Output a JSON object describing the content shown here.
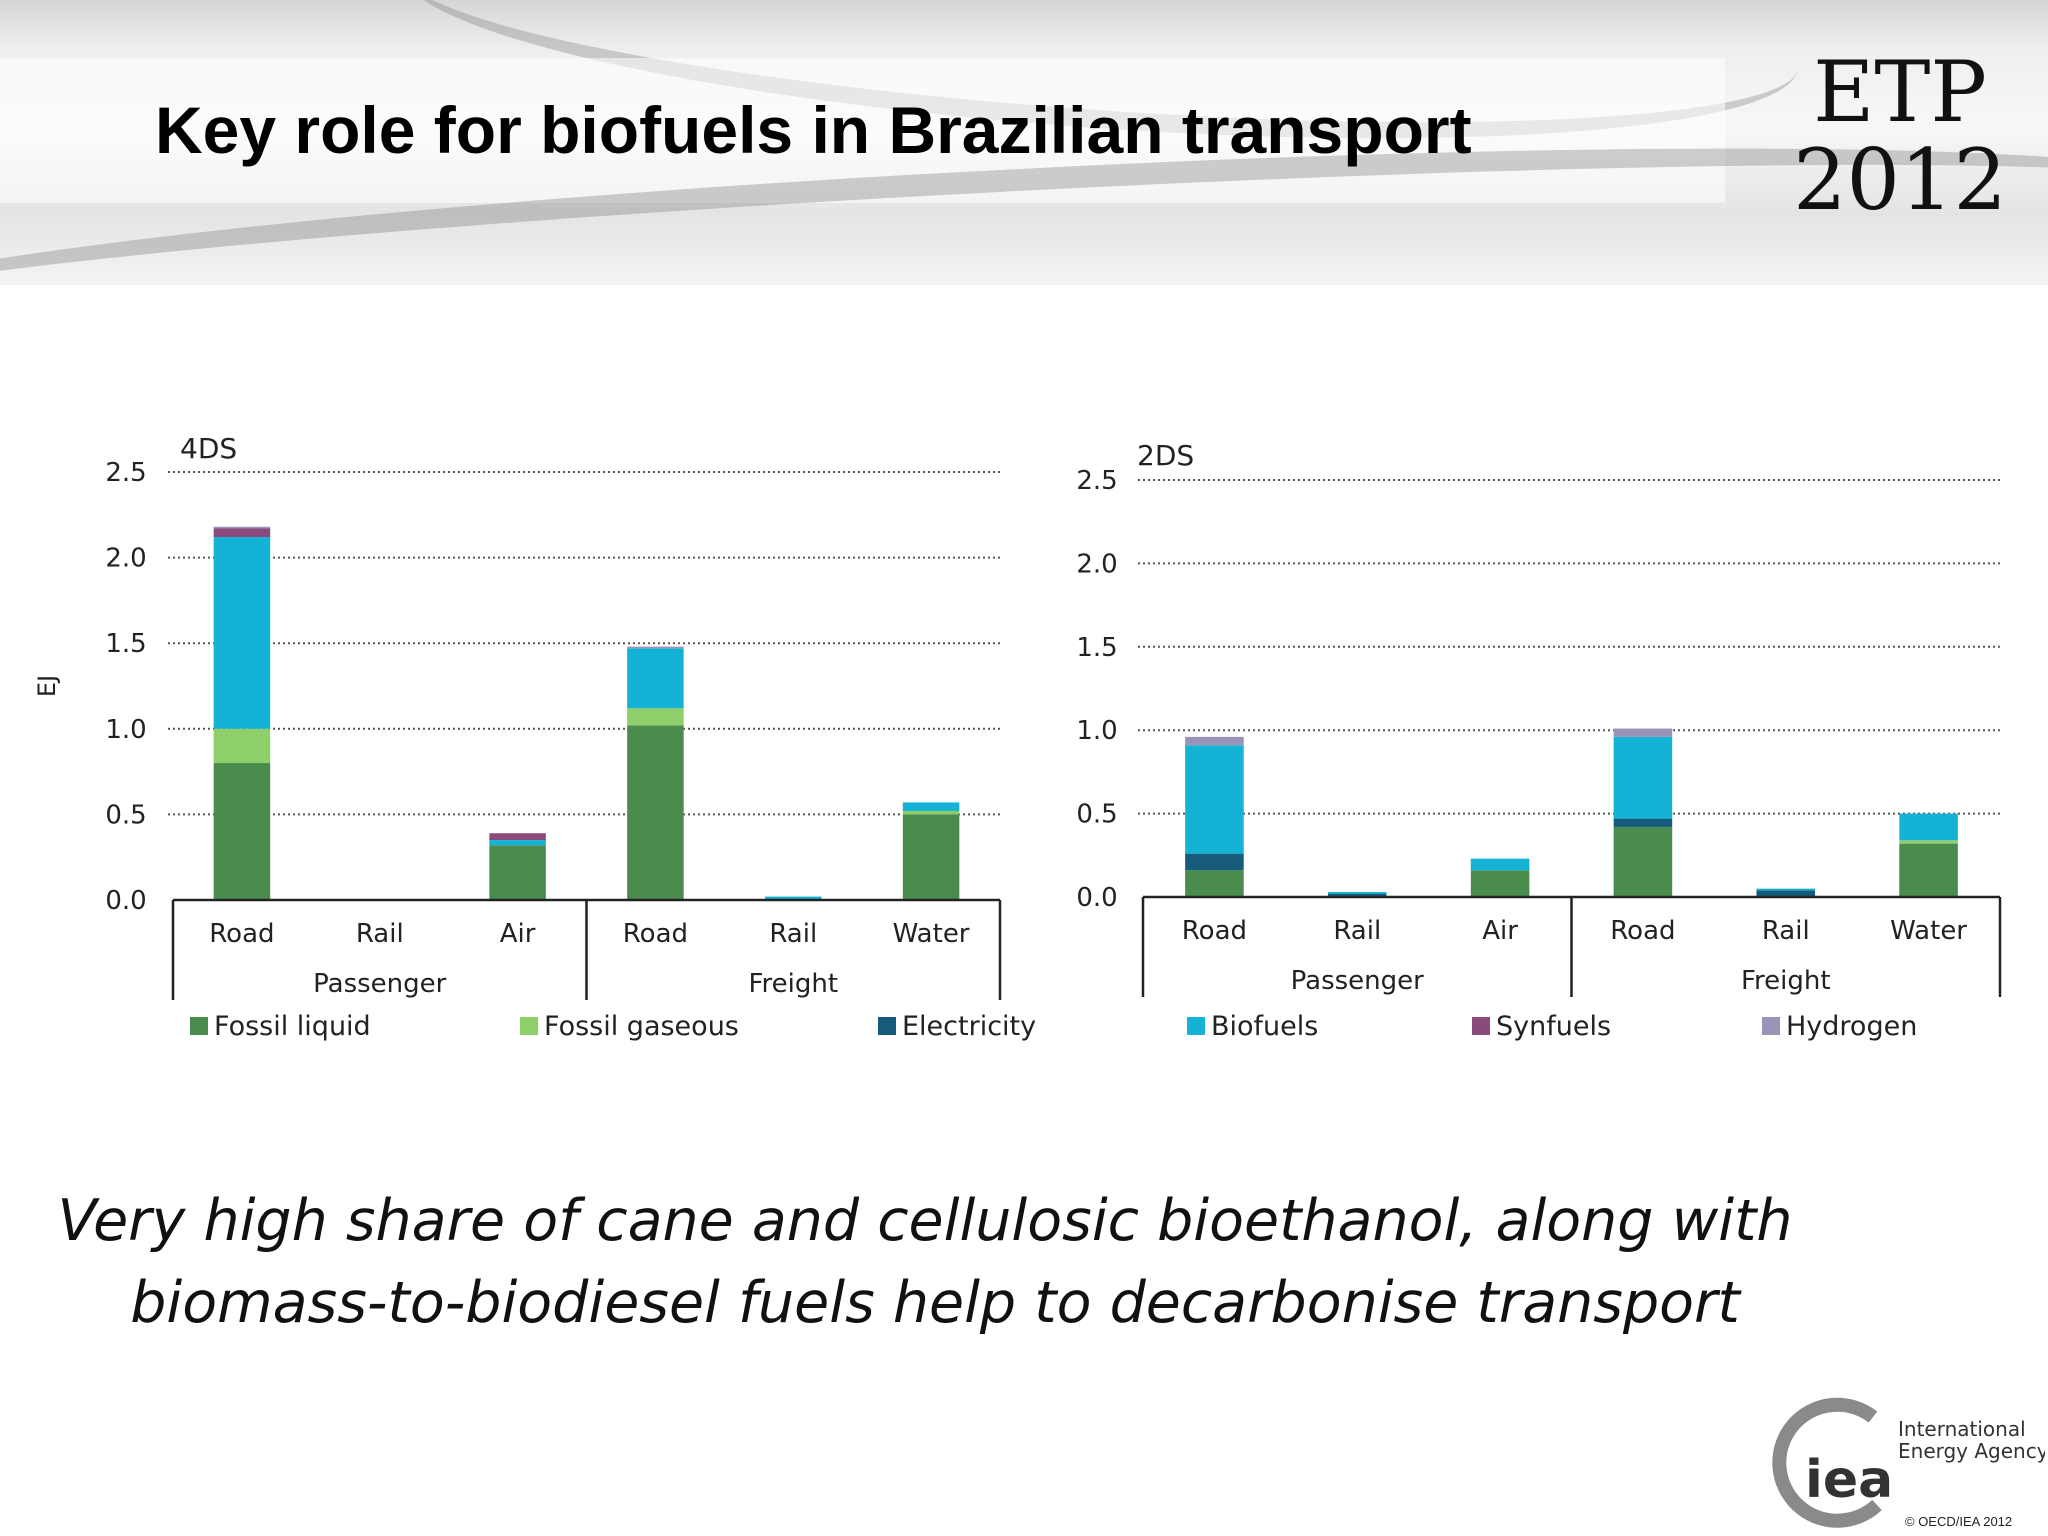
{
  "slide": {
    "title": "Key role for biofuels in Brazilian transport",
    "logo_line1": "ETP",
    "logo_line2": "2012",
    "caption_line1": "Very high share of cane and cellulosic bioethanol, along with",
    "caption_line2": "biomass-to-biodiesel fuels help to decarbonise transport",
    "agency_line1": "International",
    "agency_line2": "Energy Agency",
    "agency_short": "iea",
    "copyright": "© OECD/IEA 2012"
  },
  "legend": {
    "items": [
      {
        "name": "Fossil liquid",
        "color": "#4a8c4e"
      },
      {
        "name": "Fossil gaseous",
        "color": "#8fcf6a"
      },
      {
        "name": "Electricity",
        "color": "#165a7c"
      },
      {
        "name": "Biofuels",
        "color": "#14b3d6"
      },
      {
        "name": "Synfuels",
        "color": "#8a4a7c"
      },
      {
        "name": "Hydrogen",
        "color": "#9a94b8"
      }
    ]
  },
  "chart_data": [
    {
      "type": "bar",
      "title": "4DS",
      "ylabel": "EJ",
      "ylim": [
        0,
        2.5
      ],
      "yticks": [
        "0.0",
        "0.5",
        "1.0",
        "1.5",
        "2.0",
        "2.5"
      ],
      "grid": true,
      "categories": [
        "Road",
        "Rail",
        "Air",
        "Road",
        "Rail",
        "Water"
      ],
      "groups": [
        {
          "name": "Passenger",
          "count": 3
        },
        {
          "name": "Freight",
          "count": 3
        }
      ],
      "stacked": true,
      "series": [
        {
          "name": "Fossil liquid",
          "values": [
            0.8,
            0.0,
            0.32,
            1.02,
            0.0,
            0.5
          ]
        },
        {
          "name": "Fossil gaseous",
          "values": [
            0.2,
            0.0,
            0.0,
            0.1,
            0.0,
            0.02
          ]
        },
        {
          "name": "Electricity",
          "values": [
            0.0,
            0.0,
            0.0,
            0.0,
            0.0,
            0.0
          ]
        },
        {
          "name": "Biofuels",
          "values": [
            1.12,
            0.0,
            0.03,
            0.35,
            0.02,
            0.05
          ]
        },
        {
          "name": "Synfuels",
          "values": [
            0.05,
            0.0,
            0.04,
            0.0,
            0.0,
            0.0
          ]
        },
        {
          "name": "Hydrogen",
          "values": [
            0.01,
            0.0,
            0.0,
            0.01,
            0.0,
            0.0
          ]
        }
      ]
    },
    {
      "type": "bar",
      "title": "2DS",
      "ylabel": "",
      "ylim": [
        0,
        2.5
      ],
      "yticks": [
        "0.0",
        "0.5",
        "1.0",
        "1.5",
        "2.0",
        "2.5"
      ],
      "grid": true,
      "categories": [
        "Road",
        "Rail",
        "Air",
        "Road",
        "Rail",
        "Water"
      ],
      "groups": [
        {
          "name": "Passenger",
          "count": 3
        },
        {
          "name": "Freight",
          "count": 3
        }
      ],
      "stacked": true,
      "series": [
        {
          "name": "Fossil liquid",
          "values": [
            0.16,
            0.0,
            0.16,
            0.42,
            0.0,
            0.32
          ]
        },
        {
          "name": "Fossil gaseous",
          "values": [
            0.0,
            0.0,
            0.0,
            0.0,
            0.0,
            0.02
          ]
        },
        {
          "name": "Electricity",
          "values": [
            0.1,
            0.02,
            0.0,
            0.05,
            0.04,
            0.0
          ]
        },
        {
          "name": "Biofuels",
          "values": [
            0.65,
            0.01,
            0.07,
            0.49,
            0.01,
            0.16
          ]
        },
        {
          "name": "Synfuels",
          "values": [
            0.0,
            0.0,
            0.0,
            0.0,
            0.0,
            0.0
          ]
        },
        {
          "name": "Hydrogen",
          "values": [
            0.05,
            0.0,
            0.0,
            0.05,
            0.0,
            0.0
          ]
        }
      ]
    }
  ]
}
